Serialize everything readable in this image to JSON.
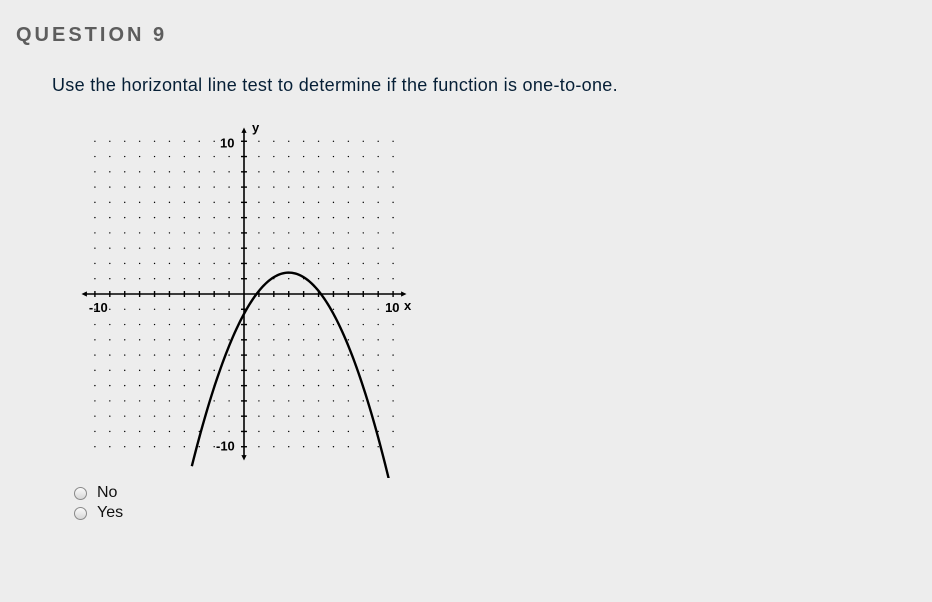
{
  "question": {
    "title": "QUESTION 9",
    "prompt": "Use the horizontal line test to determine if the function is one-to-one."
  },
  "chart": {
    "type": "scatter-grid-with-curve",
    "xlim": [
      -11,
      11
    ],
    "ylim": [
      -11,
      11
    ],
    "tick_major_step": 1,
    "grid_dot_color": "#000000",
    "axis_color": "#000000",
    "background_color": "#ededed",
    "labels": {
      "x_pos": "x",
      "y_pos": "y",
      "x_neg_tick": "-10",
      "x_pos_tick": "10",
      "y_pos_tick": "10",
      "y_neg_tick": "-10"
    },
    "label_fontsize": 13,
    "curve": {
      "type": "parabola",
      "vertex": [
        3,
        1.4
      ],
      "coef_a": -0.3,
      "color": "#000000",
      "width": 2.4,
      "x_draw_range": [
        -3.5,
        10.5
      ]
    }
  },
  "options": [
    {
      "id": "no",
      "label": "No",
      "selected": false
    },
    {
      "id": "yes",
      "label": "Yes",
      "selected": false
    }
  ]
}
